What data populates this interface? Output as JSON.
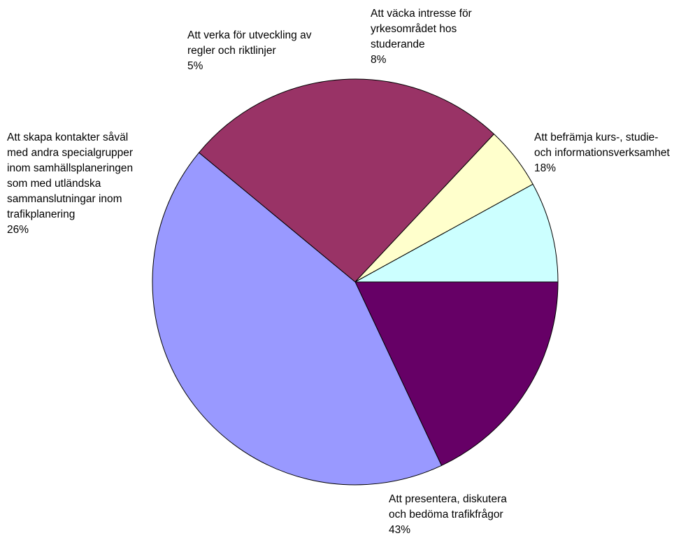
{
  "chart_data": {
    "type": "pie",
    "start_angle_deg": 0,
    "direction": "clockwise",
    "slices": [
      {
        "label_lines": [
          "Att befrämja kurs-, studie-",
          "och informationsverksamhet"
        ],
        "value": 18,
        "pct_label": "18%",
        "color": "#660066"
      },
      {
        "label_lines": [
          "Att presentera, diskutera",
          "och bedöma trafikfrågor"
        ],
        "value": 43,
        "pct_label": "43%",
        "color": "#9999ff"
      },
      {
        "label_lines": [
          "Att skapa kontakter såväl",
          "med andra specialgrupper",
          "inom samhällsplaneringen",
          "som med utländska",
          "sammanslutningar inom",
          "trafikplanering"
        ],
        "value": 26,
        "pct_label": "26%",
        "color": "#993366"
      },
      {
        "label_lines": [
          "Att verka för utveckling av",
          "regler och riktlinjer"
        ],
        "value": 5,
        "pct_label": "5%",
        "color": "#ffffcc"
      },
      {
        "label_lines": [
          "Att väcka intresse för",
          "yrkesområdet hos",
          "studerande"
        ],
        "value": 8,
        "pct_label": "8%",
        "color": "#ccffff"
      }
    ]
  }
}
